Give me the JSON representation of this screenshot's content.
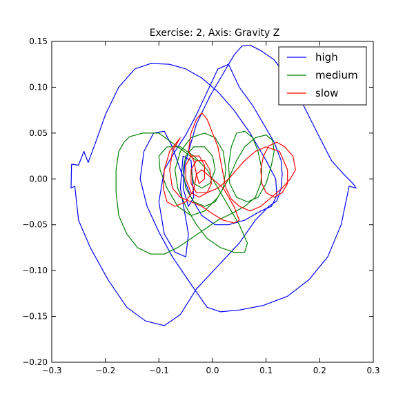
{
  "chart_data": {
    "type": "line",
    "title": "Exercise: 2, Axis: Gravity Z",
    "xlabel": "",
    "ylabel": "",
    "xlim": [
      -0.3,
      0.3
    ],
    "ylim": [
      -0.2,
      0.15
    ],
    "x_ticks": [
      -0.3,
      -0.2,
      -0.1,
      0.0,
      0.1,
      0.2,
      0.3
    ],
    "x_tick_labels": [
      "−0.3",
      "−0.2",
      "−0.1",
      "0.0",
      "0.1",
      "0.2",
      "0.3"
    ],
    "y_ticks": [
      -0.2,
      -0.15,
      -0.1,
      -0.05,
      0.0,
      0.05,
      0.1,
      0.15
    ],
    "y_tick_labels": [
      "−0.20",
      "−0.15",
      "−0.10",
      "−0.05",
      "0.00",
      "0.05",
      "0.10",
      "0.15"
    ],
    "grid": false,
    "legend_position": "top-right",
    "series": [
      {
        "name": "high",
        "color": "#0000ff",
        "points": [
          [
            -0.263,
            0.016
          ],
          [
            -0.264,
            -0.01
          ],
          [
            -0.257,
            -0.008
          ],
          [
            -0.25,
            -0.045
          ],
          [
            -0.228,
            -0.075
          ],
          [
            -0.195,
            -0.11
          ],
          [
            -0.16,
            -0.14
          ],
          [
            -0.125,
            -0.155
          ],
          [
            -0.09,
            -0.16
          ],
          [
            -0.06,
            -0.148
          ],
          [
            -0.03,
            -0.12
          ],
          [
            0.01,
            -0.095
          ],
          [
            0.05,
            -0.07
          ],
          [
            0.08,
            -0.045
          ],
          [
            0.105,
            -0.03
          ],
          [
            0.12,
            -0.024
          ],
          [
            0.128,
            -0.01
          ],
          [
            0.13,
            0.005
          ],
          [
            0.128,
            0.02
          ],
          [
            0.115,
            0.04
          ],
          [
            0.095,
            0.06
          ],
          [
            0.075,
            0.08
          ],
          [
            0.05,
            0.1
          ],
          [
            0.03,
            0.125
          ],
          [
            0.01,
            0.12
          ],
          [
            -0.01,
            0.095
          ],
          [
            -0.03,
            0.07
          ],
          [
            -0.05,
            0.048
          ],
          [
            -0.07,
            0.03
          ],
          [
            -0.09,
            0.01
          ],
          [
            -0.1,
            -0.025
          ],
          [
            -0.09,
            -0.06
          ],
          [
            -0.07,
            -0.08
          ],
          [
            -0.05,
            -0.085
          ],
          [
            -0.045,
            -0.06
          ],
          [
            -0.06,
            -0.01
          ],
          [
            -0.055,
            0.025
          ],
          [
            -0.04,
            0.02
          ],
          [
            -0.035,
            -0.02
          ],
          [
            -0.045,
            -0.03
          ],
          [
            -0.055,
            -0.01
          ],
          [
            -0.052,
            0.015
          ],
          [
            -0.03,
            0.06
          ],
          [
            -0.005,
            0.09
          ],
          [
            0.02,
            0.115
          ],
          [
            0.04,
            0.135
          ],
          [
            0.055,
            0.145
          ],
          [
            0.07,
            0.146
          ],
          [
            0.09,
            0.14
          ],
          [
            0.115,
            0.13
          ],
          [
            0.14,
            0.11
          ],
          [
            0.17,
            0.08
          ],
          [
            0.2,
            0.045
          ],
          [
            0.222,
            0.02
          ],
          [
            0.245,
            0.005
          ],
          [
            0.262,
            -0.005
          ],
          [
            0.268,
            -0.01
          ],
          [
            0.255,
            -0.008
          ],
          [
            0.24,
            -0.05
          ],
          [
            0.215,
            -0.085
          ],
          [
            0.18,
            -0.11
          ],
          [
            0.14,
            -0.128
          ],
          [
            0.095,
            -0.138
          ],
          [
            0.05,
            -0.143
          ],
          [
            0.015,
            -0.145
          ],
          [
            -0.01,
            -0.14
          ],
          [
            -0.04,
            -0.115
          ],
          [
            -0.075,
            -0.085
          ],
          [
            -0.1,
            -0.058
          ],
          [
            -0.122,
            -0.03
          ],
          [
            -0.135,
            0.0
          ],
          [
            -0.128,
            0.03
          ],
          [
            -0.11,
            0.05
          ],
          [
            -0.09,
            0.052
          ],
          [
            -0.075,
            0.035
          ],
          [
            -0.06,
            0.01
          ],
          [
            -0.04,
            -0.02
          ],
          [
            -0.02,
            -0.04
          ],
          [
            0.005,
            -0.05
          ],
          [
            0.03,
            -0.05
          ],
          [
            0.06,
            -0.045
          ],
          [
            0.09,
            -0.035
          ],
          [
            0.11,
            -0.03
          ],
          [
            0.12,
            -0.018
          ],
          [
            0.118,
            0.0
          ],
          [
            0.1,
            0.02
          ],
          [
            0.07,
            0.05
          ],
          [
            0.04,
            0.075
          ],
          [
            0.01,
            0.095
          ],
          [
            -0.02,
            0.11
          ],
          [
            -0.05,
            0.12
          ],
          [
            -0.08,
            0.125
          ],
          [
            -0.115,
            0.126
          ],
          [
            -0.145,
            0.12
          ],
          [
            -0.175,
            0.1
          ],
          [
            -0.2,
            0.07
          ],
          [
            -0.218,
            0.04
          ],
          [
            -0.232,
            0.018
          ],
          [
            -0.24,
            0.03
          ],
          [
            -0.25,
            0.015
          ],
          [
            -0.263,
            0.016
          ]
        ]
      },
      {
        "name": "medium",
        "color": "#008000",
        "points": [
          [
            -0.165,
            0.04
          ],
          [
            -0.175,
            0.03
          ],
          [
            -0.18,
            0.01
          ],
          [
            -0.18,
            -0.015
          ],
          [
            -0.175,
            -0.04
          ],
          [
            -0.16,
            -0.06
          ],
          [
            -0.14,
            -0.075
          ],
          [
            -0.115,
            -0.082
          ],
          [
            -0.09,
            -0.082
          ],
          [
            -0.065,
            -0.075
          ],
          [
            -0.04,
            -0.065
          ],
          [
            -0.015,
            -0.055
          ],
          [
            0.01,
            -0.045
          ],
          [
            0.035,
            -0.038
          ],
          [
            0.06,
            -0.03
          ],
          [
            0.08,
            -0.02
          ],
          [
            0.09,
            -0.005
          ],
          [
            0.092,
            0.01
          ],
          [
            0.085,
            0.03
          ],
          [
            0.075,
            0.045
          ],
          [
            0.06,
            0.052
          ],
          [
            0.045,
            0.05
          ],
          [
            0.035,
            0.035
          ],
          [
            0.03,
            0.015
          ],
          [
            0.032,
            -0.005
          ],
          [
            0.045,
            -0.02
          ],
          [
            0.065,
            -0.025
          ],
          [
            0.085,
            -0.02
          ],
          [
            0.1,
            -0.005
          ],
          [
            0.11,
            0.015
          ],
          [
            0.115,
            0.03
          ],
          [
            0.112,
            0.042
          ],
          [
            0.1,
            0.048
          ],
          [
            0.08,
            0.045
          ],
          [
            0.06,
            0.035
          ],
          [
            0.045,
            0.02
          ],
          [
            0.03,
            0.0
          ],
          [
            0.01,
            -0.02
          ],
          [
            -0.015,
            -0.035
          ],
          [
            -0.04,
            -0.04
          ],
          [
            -0.065,
            -0.03
          ],
          [
            -0.085,
            -0.01
          ],
          [
            -0.098,
            0.01
          ],
          [
            -0.1,
            0.025
          ],
          [
            -0.085,
            0.035
          ],
          [
            -0.06,
            0.035
          ],
          [
            -0.035,
            0.025
          ],
          [
            -0.01,
            0.01
          ],
          [
            0.01,
            -0.01
          ],
          [
            0.03,
            -0.03
          ],
          [
            0.05,
            -0.05
          ],
          [
            0.065,
            -0.07
          ],
          [
            0.06,
            -0.08
          ],
          [
            0.04,
            -0.08
          ],
          [
            0.015,
            -0.075
          ],
          [
            -0.01,
            -0.065
          ],
          [
            -0.03,
            -0.05
          ],
          [
            -0.05,
            -0.03
          ],
          [
            -0.065,
            -0.01
          ],
          [
            -0.07,
            0.01
          ],
          [
            -0.06,
            0.03
          ],
          [
            -0.04,
            0.045
          ],
          [
            -0.015,
            0.05
          ],
          [
            0.005,
            0.045
          ],
          [
            0.02,
            0.03
          ],
          [
            0.025,
            0.01
          ],
          [
            0.02,
            -0.01
          ],
          [
            0.005,
            -0.025
          ],
          [
            -0.015,
            -0.03
          ],
          [
            -0.035,
            -0.025
          ],
          [
            -0.05,
            -0.01
          ],
          [
            -0.055,
            0.01
          ],
          [
            -0.05,
            0.025
          ],
          [
            -0.035,
            0.035
          ],
          [
            -0.015,
            0.035
          ],
          [
            0.0,
            0.025
          ],
          [
            0.005,
            0.01
          ],
          [
            -0.005,
            -0.005
          ],
          [
            -0.02,
            -0.01
          ],
          [
            -0.035,
            -0.005
          ],
          [
            -0.04,
            0.01
          ],
          [
            -0.03,
            0.02
          ],
          [
            -0.1,
            0.05
          ],
          [
            -0.13,
            0.05
          ],
          [
            -0.155,
            0.046
          ],
          [
            -0.165,
            0.04
          ]
        ]
      },
      {
        "name": "slow",
        "color": "#ff0000",
        "points": [
          [
            -0.06,
            0.045
          ],
          [
            -0.08,
            0.03
          ],
          [
            -0.09,
            0.01
          ],
          [
            -0.092,
            -0.01
          ],
          [
            -0.085,
            -0.025
          ],
          [
            -0.07,
            -0.03
          ],
          [
            -0.05,
            -0.025
          ],
          [
            -0.035,
            -0.012
          ],
          [
            -0.03,
            0.005
          ],
          [
            -0.035,
            0.02
          ],
          [
            -0.045,
            0.03
          ],
          [
            -0.04,
            0.05
          ],
          [
            -0.03,
            0.065
          ],
          [
            -0.02,
            0.072
          ],
          [
            -0.01,
            0.065
          ],
          [
            0.0,
            0.05
          ],
          [
            0.01,
            0.035
          ],
          [
            0.015,
            0.02
          ],
          [
            0.02,
            0.005
          ],
          [
            0.025,
            -0.01
          ],
          [
            0.035,
            -0.022
          ],
          [
            0.05,
            -0.03
          ],
          [
            0.07,
            -0.035
          ],
          [
            0.09,
            -0.03
          ],
          [
            0.11,
            -0.02
          ],
          [
            0.13,
            -0.01
          ],
          [
            0.145,
            0.0
          ],
          [
            0.155,
            0.01
          ],
          [
            0.15,
            0.025
          ],
          [
            0.135,
            0.035
          ],
          [
            0.12,
            0.04
          ],
          [
            0.105,
            0.036
          ],
          [
            0.095,
            0.025
          ],
          [
            0.09,
            0.01
          ],
          [
            0.092,
            -0.005
          ],
          [
            0.1,
            -0.015
          ],
          [
            0.115,
            -0.02
          ],
          [
            0.13,
            -0.015
          ],
          [
            0.14,
            -0.005
          ],
          [
            0.14,
            0.01
          ],
          [
            0.125,
            0.03
          ],
          [
            0.1,
            0.035
          ],
          [
            0.08,
            0.03
          ],
          [
            0.06,
            0.02
          ],
          [
            0.045,
            0.01
          ],
          [
            0.03,
            0.0
          ],
          [
            0.01,
            -0.01
          ],
          [
            -0.01,
            -0.015
          ],
          [
            -0.03,
            -0.015
          ],
          [
            -0.04,
            -0.005
          ],
          [
            -0.04,
            0.01
          ],
          [
            -0.03,
            0.02
          ],
          [
            -0.015,
            0.02
          ],
          [
            -0.005,
            0.01
          ],
          [
            -0.002,
            -0.005
          ],
          [
            -0.01,
            -0.015
          ],
          [
            -0.025,
            -0.02
          ],
          [
            -0.04,
            -0.015
          ],
          [
            -0.05,
            0.0
          ],
          [
            -0.05,
            0.015
          ],
          [
            -0.04,
            0.025
          ],
          [
            -0.025,
            0.025
          ],
          [
            -0.015,
            0.015
          ],
          [
            -0.015,
            0.0
          ],
          [
            -0.025,
            -0.005
          ],
          [
            -0.03,
            0.005
          ],
          [
            -0.02,
            0.01
          ],
          [
            0.0,
            0.0
          ],
          [
            0.02,
            -0.01
          ],
          [
            0.04,
            -0.03
          ],
          [
            0.05,
            -0.045
          ],
          [
            0.04,
            -0.048
          ],
          [
            0.02,
            -0.045
          ],
          [
            0.0,
            -0.038
          ],
          [
            -0.02,
            -0.03
          ],
          [
            -0.04,
            -0.025
          ],
          [
            -0.06,
            -0.02
          ],
          [
            -0.075,
            -0.01
          ],
          [
            -0.08,
            0.01
          ],
          [
            -0.075,
            0.03
          ],
          [
            -0.06,
            0.045
          ]
        ]
      }
    ]
  }
}
